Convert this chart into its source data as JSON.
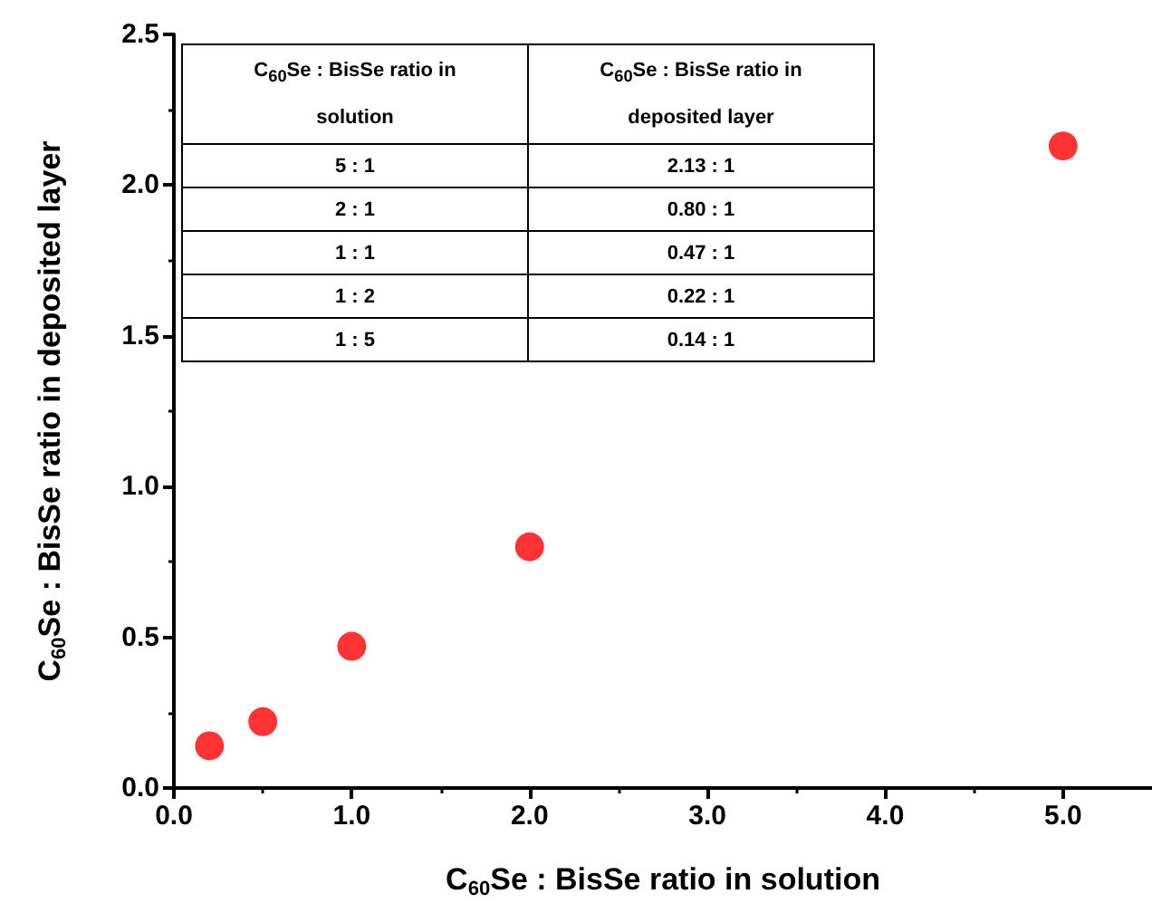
{
  "chart_data": {
    "type": "scatter",
    "xlabel": "C$_{60}$Se : BisSe ratio in solution",
    "ylabel": "C$_{60}$Se : BisSe ratio in deposited layer",
    "x": [
      0.2,
      0.5,
      1.0,
      2.0,
      5.0
    ],
    "series": [
      {
        "color": "#ff0000",
        "values": [
          0.14,
          0.22,
          0.47,
          0.8,
          2.13
        ]
      }
    ],
    "xlim": [
      0,
      5.5
    ],
    "xticks": [
      {
        "value": 0,
        "label": "0.0"
      },
      {
        "value": 1,
        "label": "1.0"
      },
      {
        "value": 2,
        "label": "2.0"
      },
      {
        "value": 3,
        "label": "3.0"
      },
      {
        "value": 4,
        "label": "4.0"
      },
      {
        "value": 5,
        "label": "5.0"
      }
    ],
    "ylim": [
      0,
      2.5
    ],
    "yticks": [
      {
        "value": 0,
        "label": "0.0"
      },
      {
        "value": 0.5,
        "label": "0.5"
      },
      {
        "value": 1,
        "label": "1.0"
      },
      {
        "value": 1.5,
        "label": "1.5"
      },
      {
        "value": 2,
        "label": "2.0"
      },
      {
        "value": 2.5,
        "label": "2.5"
      }
    ],
    "marker": "circle",
    "grid": false,
    "annotations": [
      "C$_{60}$Se : BisSe ratio in solution",
      "C$_{60}$Se : BisSe ratio in deposited layer",
      "5 : 1",
      "2.13 : 1",
      "2 : 1",
      "0.80 : 1",
      "1 : 1",
      "0.47 : 1",
      "1 : 2",
      "0.22 : 1",
      "1 : 5",
      "0.14 : 1"
    ]
  }
}
